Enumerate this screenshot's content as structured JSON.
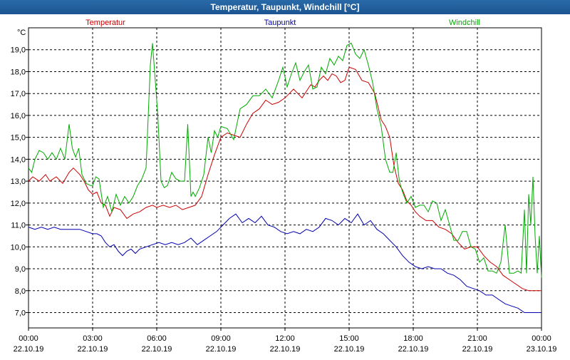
{
  "window": {
    "title": "Temperatur, Taupunkt, Windchill [°C]"
  },
  "colors": {
    "temperatur": "#cc0000",
    "taupunkt": "#0000b0",
    "windchill": "#00aa00",
    "grid": "#000000"
  },
  "chart_data": {
    "type": "line",
    "title": "Temperatur, Taupunkt, Windchill [°C]",
    "ylabel": "°C",
    "xlabel": "",
    "ylim": [
      6.3,
      20.0
    ],
    "xlim": [
      0,
      24
    ],
    "grid": true,
    "y_ticks": [
      "19,0",
      "18,0",
      "17,0",
      "16,0",
      "15,0",
      "14,0",
      "13,0",
      "12,0",
      "11,0",
      "10,0",
      "9,0",
      "8,0",
      "7,0"
    ],
    "y_tick_values": [
      19,
      18,
      17,
      16,
      15,
      14,
      13,
      12,
      11,
      10,
      9,
      8,
      7
    ],
    "x_tick_values": [
      0,
      3,
      6,
      9,
      12,
      15,
      18,
      21,
      24
    ],
    "x_ticks": [
      {
        "time": "00:00",
        "date": "22.10.19"
      },
      {
        "time": "03:00",
        "date": "22.10.19"
      },
      {
        "time": "06:00",
        "date": "22.10.19"
      },
      {
        "time": "09:00",
        "date": "22.10.19"
      },
      {
        "time": "12:00",
        "date": "22.10.19"
      },
      {
        "time": "15:00",
        "date": "22.10.19"
      },
      {
        "time": "18:00",
        "date": "22.10.19"
      },
      {
        "time": "21:00",
        "date": "22.10.19"
      },
      {
        "time": "00:00",
        "date": "23.10.19"
      }
    ],
    "series": [
      {
        "name": "Temperatur",
        "x": [
          0,
          0.2,
          0.5,
          0.8,
          1.0,
          1.3,
          1.6,
          1.9,
          2.1,
          2.4,
          2.6,
          2.8,
          3.0,
          3.2,
          3.4,
          3.6,
          3.8,
          4.0,
          4.3,
          4.6,
          4.9,
          5.2,
          5.5,
          5.8,
          6.0,
          6.3,
          6.6,
          6.9,
          7.2,
          7.5,
          7.8,
          8.1,
          8.4,
          8.7,
          9.0,
          9.3,
          9.6,
          9.9,
          10.2,
          10.5,
          10.8,
          11.1,
          11.4,
          11.7,
          12.0,
          12.2,
          12.4,
          12.6,
          12.8,
          13.0,
          13.2,
          13.4,
          13.6,
          13.8,
          14.0,
          14.2,
          14.4,
          14.6,
          14.8,
          15.0,
          15.3,
          15.6,
          15.9,
          16.2,
          16.5,
          16.7,
          16.9,
          17.1,
          17.3,
          17.5,
          17.7,
          17.9,
          18.1,
          18.3,
          18.6,
          18.9,
          19.2,
          19.5,
          19.8,
          20.1,
          20.4,
          20.7,
          21.0,
          21.3,
          21.6,
          21.9,
          22.2,
          22.5,
          22.8,
          23.1,
          23.4,
          23.7,
          24.0
        ],
        "values": [
          13.0,
          13.2,
          13.0,
          13.3,
          13.0,
          13.2,
          12.9,
          13.4,
          13.6,
          13.3,
          13.0,
          12.6,
          12.4,
          12.5,
          12.0,
          11.9,
          11.4,
          11.8,
          11.7,
          11.3,
          11.5,
          11.6,
          11.8,
          11.9,
          11.8,
          11.9,
          11.8,
          11.9,
          11.7,
          11.8,
          11.9,
          12.3,
          13.3,
          14.2,
          15.0,
          15.2,
          15.1,
          15.0,
          15.6,
          16.1,
          16.3,
          16.7,
          16.5,
          16.6,
          16.8,
          17.0,
          17.2,
          17.0,
          16.8,
          17.1,
          17.4,
          17.3,
          17.6,
          17.8,
          17.6,
          17.9,
          17.8,
          17.5,
          17.6,
          18.2,
          18.1,
          17.6,
          17.5,
          17.0,
          15.8,
          15.5,
          15.0,
          13.7,
          12.9,
          12.6,
          12.1,
          11.9,
          11.6,
          11.4,
          11.2,
          11.2,
          10.9,
          10.8,
          10.6,
          10.2,
          9.9,
          10.0,
          10.0,
          9.6,
          9.3,
          9.1,
          8.7,
          8.5,
          8.3,
          8.1,
          8.0,
          8.0,
          8.0
        ]
      },
      {
        "name": "Taupunkt",
        "x": [
          0,
          0.3,
          0.6,
          0.9,
          1.2,
          1.5,
          1.8,
          2.1,
          2.4,
          2.7,
          3.0,
          3.2,
          3.4,
          3.6,
          3.8,
          4.0,
          4.2,
          4.4,
          4.6,
          4.8,
          5.0,
          5.2,
          5.5,
          5.8,
          6.1,
          6.4,
          6.7,
          7.0,
          7.3,
          7.6,
          7.9,
          8.2,
          8.5,
          8.8,
          9.1,
          9.4,
          9.7,
          10.0,
          10.3,
          10.6,
          10.9,
          11.2,
          11.5,
          11.8,
          12.1,
          12.4,
          12.7,
          13.0,
          13.3,
          13.6,
          13.9,
          14.2,
          14.5,
          14.8,
          15.1,
          15.4,
          15.7,
          16.0,
          16.3,
          16.6,
          16.9,
          17.2,
          17.5,
          17.8,
          18.1,
          18.4,
          18.7,
          19.0,
          19.3,
          19.6,
          19.9,
          20.2,
          20.5,
          20.8,
          21.1,
          21.4,
          21.7,
          22.0,
          22.3,
          22.6,
          22.9,
          23.2,
          23.5,
          23.8,
          24.0
        ],
        "values": [
          10.9,
          10.8,
          10.9,
          10.8,
          10.9,
          10.8,
          10.8,
          10.8,
          10.8,
          10.7,
          10.6,
          10.6,
          10.5,
          10.2,
          10.0,
          10.1,
          9.8,
          9.6,
          9.8,
          9.9,
          9.7,
          9.9,
          10.0,
          10.1,
          10.2,
          10.1,
          10.2,
          10.1,
          10.2,
          10.4,
          10.1,
          10.3,
          10.5,
          10.7,
          11.0,
          11.3,
          11.5,
          11.1,
          11.3,
          11.1,
          11.4,
          11.0,
          10.9,
          10.7,
          10.6,
          10.7,
          10.6,
          10.8,
          10.7,
          10.9,
          11.3,
          11.2,
          11.0,
          11.3,
          11.1,
          11.5,
          11.0,
          11.2,
          10.8,
          10.6,
          10.3,
          10.0,
          9.6,
          9.3,
          9.1,
          9.0,
          9.1,
          9.0,
          9.0,
          8.8,
          8.7,
          8.5,
          8.2,
          8.1,
          8.0,
          7.8,
          7.8,
          7.6,
          7.4,
          7.3,
          7.2,
          7.0,
          7.0,
          7.0,
          7.0
        ]
      },
      {
        "name": "Windchill",
        "x": [
          0,
          0.15,
          0.3,
          0.5,
          0.7,
          0.9,
          1.1,
          1.3,
          1.5,
          1.7,
          1.9,
          2.05,
          2.2,
          2.35,
          2.5,
          2.7,
          2.9,
          3.0,
          3.15,
          3.3,
          3.5,
          3.7,
          3.9,
          4.1,
          4.3,
          4.5,
          4.7,
          4.9,
          5.1,
          5.3,
          5.5,
          5.7,
          5.8,
          5.9,
          6.05,
          6.2,
          6.35,
          6.5,
          6.7,
          6.9,
          7.1,
          7.3,
          7.45,
          7.6,
          7.7,
          7.8,
          8.0,
          8.2,
          8.4,
          8.55,
          8.7,
          8.85,
          9.0,
          9.3,
          9.6,
          9.9,
          10.2,
          10.5,
          10.8,
          11.1,
          11.4,
          11.7,
          11.9,
          12.1,
          12.3,
          12.5,
          12.7,
          12.9,
          13.1,
          13.3,
          13.5,
          13.7,
          13.9,
          14.1,
          14.3,
          14.5,
          14.7,
          14.9,
          15.1,
          15.3,
          15.5,
          15.7,
          15.9,
          16.1,
          16.3,
          16.5,
          16.7,
          16.9,
          17.05,
          17.2,
          17.35,
          17.5,
          17.7,
          17.9,
          18.1,
          18.3,
          18.5,
          18.7,
          18.9,
          19.1,
          19.3,
          19.5,
          19.7,
          19.9,
          20.1,
          20.3,
          20.5,
          20.7,
          20.9,
          21.1,
          21.3,
          21.5,
          21.7,
          21.9,
          22.1,
          22.3,
          22.5,
          22.7,
          22.9,
          23.05,
          23.2,
          23.3,
          23.4,
          23.5,
          23.6,
          23.7,
          23.8,
          23.9,
          24.0
        ],
        "values": [
          13.6,
          13.4,
          14.0,
          14.4,
          14.3,
          14.0,
          14.3,
          14.0,
          14.5,
          14.0,
          15.6,
          14.5,
          14.1,
          14.5,
          13.3,
          12.9,
          12.8,
          12.8,
          13.2,
          13.1,
          11.8,
          12.3,
          11.6,
          12.4,
          11.9,
          12.3,
          12.0,
          12.3,
          12.8,
          13.1,
          13.6,
          18.3,
          19.3,
          18.0,
          16.0,
          13.0,
          12.7,
          12.8,
          13.4,
          13.1,
          13.0,
          13.0,
          15.6,
          12.3,
          12.5,
          12.3,
          12.7,
          13.3,
          15.0,
          14.3,
          15.3,
          15.0,
          15.5,
          15.4,
          14.9,
          16.3,
          16.5,
          16.9,
          16.9,
          17.2,
          16.8,
          17.6,
          18.2,
          17.3,
          17.9,
          18.4,
          17.6,
          18.0,
          18.3,
          17.2,
          17.3,
          18.2,
          17.9,
          18.6,
          18.3,
          18.7,
          18.5,
          19.2,
          19.3,
          18.8,
          18.6,
          19.0,
          18.3,
          17.5,
          16.3,
          15.5,
          14.0,
          13.4,
          13.4,
          14.3,
          13.0,
          12.5,
          12.0,
          12.3,
          11.8,
          11.9,
          11.9,
          11.6,
          12.1,
          12.0,
          11.2,
          11.7,
          11.0,
          10.3,
          10.3,
          10.7,
          10.7,
          10.0,
          9.9,
          9.3,
          9.5,
          8.9,
          8.9,
          8.8,
          9.3,
          11.0,
          8.8,
          8.8,
          8.9,
          8.8,
          11.7,
          8.8,
          12.4,
          11.0,
          13.2,
          10.5,
          8.8,
          10.5,
          8.6
        ]
      }
    ]
  }
}
